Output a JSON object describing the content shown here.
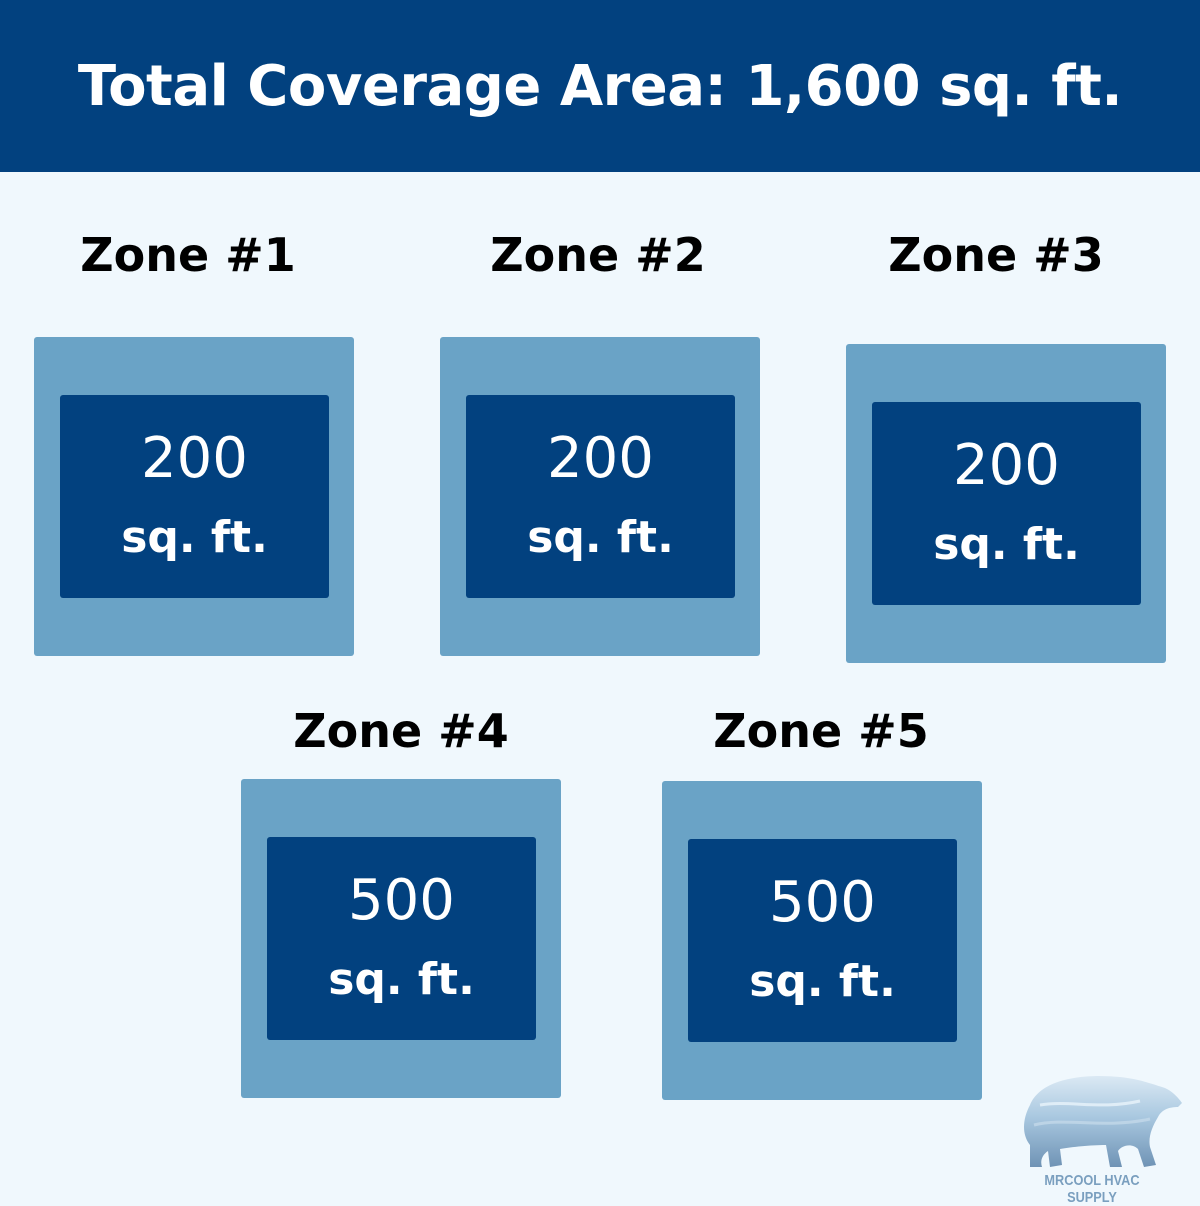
{
  "header": {
    "title": "Total Coverage Area: 1,600 sq. ft."
  },
  "zones": [
    {
      "label": "Zone #1",
      "area": "200",
      "unit": "sq. ft."
    },
    {
      "label": "Zone #2",
      "area": "200",
      "unit": "sq. ft."
    },
    {
      "label": "Zone #3",
      "area": "200",
      "unit": "sq. ft."
    },
    {
      "label": "Zone #4",
      "area": "500",
      "unit": "sq. ft."
    },
    {
      "label": "Zone #5",
      "area": "500",
      "unit": "sq. ft."
    }
  ],
  "logo": {
    "text": "MRCOOL HVAC SUPPLY",
    "icon": "polar-bear-icon"
  },
  "colors": {
    "header": "#02417f",
    "background": "#f0f8fd",
    "zone_outer": "#6aa3c6",
    "zone_inner": "#02417f"
  }
}
